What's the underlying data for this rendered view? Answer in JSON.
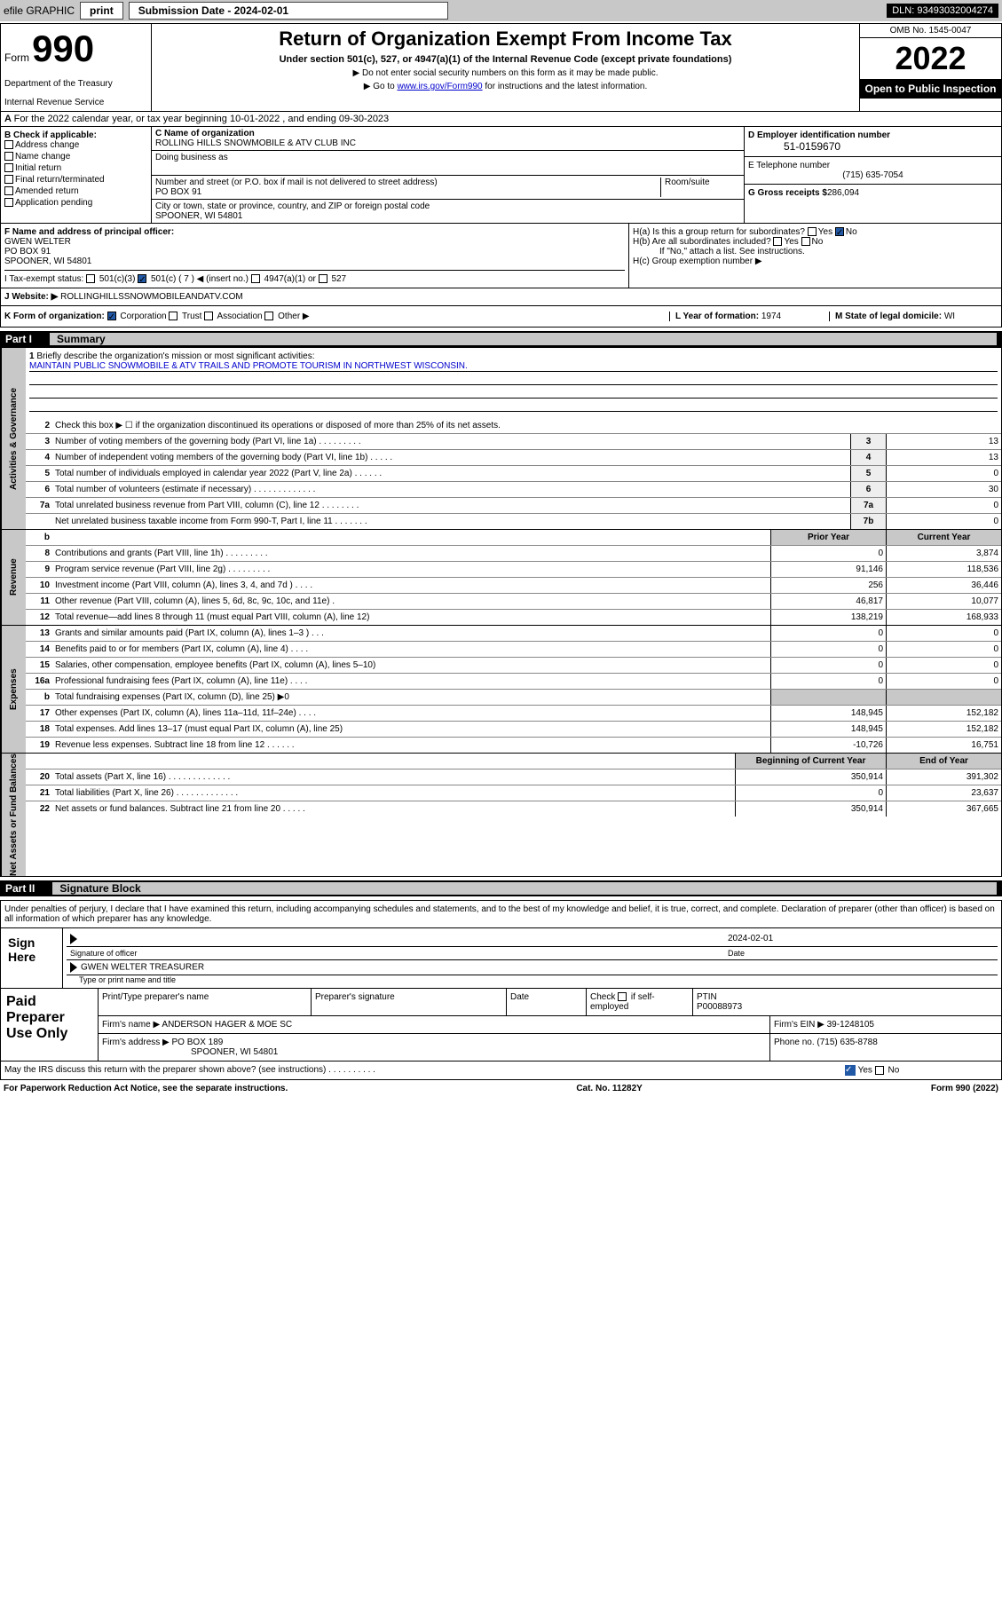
{
  "topbar": {
    "efile": "efile GRAPHIC",
    "print": "print",
    "subdate_label": "Submission Date - 2024-02-01",
    "dln": "DLN: 93493032004274"
  },
  "header": {
    "form_word": "Form",
    "form_num": "990",
    "title": "Return of Organization Exempt From Income Tax",
    "subtitle": "Under section 501(c), 527, or 4947(a)(1) of the Internal Revenue Code (except private foundations)",
    "note1": "▶ Do not enter social security numbers on this form as it may be made public.",
    "note2_pre": "▶ Go to ",
    "note2_link": "www.irs.gov/Form990",
    "note2_post": " for instructions and the latest information.",
    "dept": "Department of the Treasury",
    "irs": "Internal Revenue Service",
    "omb": "OMB No. 1545-0047",
    "year": "2022",
    "inspect": "Open to Public Inspection"
  },
  "row_a": "For the 2022 calendar year, or tax year beginning 10-01-2022    , and ending 09-30-2023",
  "box_b": {
    "title": "B Check if applicable:",
    "opts": [
      "Address change",
      "Name change",
      "Initial return",
      "Final return/terminated",
      "Amended return",
      "Application pending"
    ]
  },
  "box_c": {
    "name_lbl": "C Name of organization",
    "name": "ROLLING HILLS SNOWMOBILE & ATV CLUB INC",
    "dba_lbl": "Doing business as",
    "street_lbl": "Number and street (or P.O. box if mail is not delivered to street address)",
    "room_lbl": "Room/suite",
    "street": "PO BOX 91",
    "city_lbl": "City or town, state or province, country, and ZIP or foreign postal code",
    "city": "SPOONER, WI  54801"
  },
  "box_d": {
    "ein_lbl": "D Employer identification number",
    "ein": "51-0159670",
    "tel_lbl": "E Telephone number",
    "tel": "(715) 635-7054",
    "gross_lbl": "G Gross receipts $",
    "gross": "286,094"
  },
  "box_f": {
    "lbl": "F  Name and address of principal officer:",
    "name": "GWEN WELTER",
    "addr1": "PO BOX 91",
    "addr2": "SPOONER, WI  54801"
  },
  "box_h": {
    "ha": "H(a)  Is this a group return for subordinates?",
    "hb": "H(b)  Are all subordinates included?",
    "hb_note": "If \"No,\" attach a list. See instructions.",
    "hc": "H(c)  Group exemption number ▶",
    "yes": "Yes",
    "no": "No"
  },
  "row_i": {
    "lbl": "I    Tax-exempt status:",
    "c3": "501(c)(3)",
    "c": "501(c) ( 7 ) ◀ (insert no.)",
    "a1": "4947(a)(1) or",
    "s527": "527"
  },
  "row_j": {
    "lbl": "J   Website: ▶",
    "val": " ROLLINGHILLSSNOWMOBILEANDATV.COM"
  },
  "row_k": {
    "lbl": "K Form of organization:",
    "corp": "Corporation",
    "trust": "Trust",
    "assoc": "Association",
    "other": "Other ▶",
    "l_lbl": "L Year of formation: ",
    "l_val": "1974",
    "m_lbl": "M State of legal domicile: ",
    "m_val": "WI"
  },
  "part1": {
    "pt": "Part I",
    "pn": "Summary"
  },
  "brief": {
    "n": "1",
    "lbl": "Briefly describe the organization's mission or most significant activities:",
    "text": "MAINTAIN PUBLIC SNOWMOBILE & ATV TRAILS AND PROMOTE TOURISM IN NORTHWEST WISCONSIN."
  },
  "line2": {
    "n": "2",
    "t": "Check this box ▶ ☐  if the organization discontinued its operations or disposed of more than 25% of its net assets."
  },
  "lines_ag": [
    {
      "n": "3",
      "t": "Number of voting members of the governing body (Part VI, line 1a)   .    .    .    .    .    .    .    .    .",
      "c": "3",
      "v": "13"
    },
    {
      "n": "4",
      "t": "Number of independent voting members of the governing body (Part VI, line 1b)    .    .    .    .    .",
      "c": "4",
      "v": "13"
    },
    {
      "n": "5",
      "t": "Total number of individuals employed in calendar year 2022 (Part V, line 2a)    .    .    .    .    .    .",
      "c": "5",
      "v": "0"
    },
    {
      "n": "6",
      "t": "Total number of volunteers (estimate if necessary)    .    .    .    .    .    .    .    .    .    .    .    .    .",
      "c": "6",
      "v": "30"
    },
    {
      "n": "7a",
      "t": "Total unrelated business revenue from Part VIII, column (C), line 12    .    .    .    .    .    .    .    .",
      "c": "7a",
      "v": "0"
    },
    {
      "n": "",
      "t": "Net unrelated business taxable income from Form 990-T, Part I, line 11    .    .    .    .    .    .    .",
      "c": "7b",
      "v": "0"
    }
  ],
  "col_hdrs": {
    "b": "b",
    "py": "Prior Year",
    "cy": "Current Year"
  },
  "lines_rev": [
    {
      "n": "8",
      "t": "Contributions and grants (Part VIII, line 1h)    .    .    .    .    .    .    .    .    .",
      "py": "0",
      "cy": "3,874"
    },
    {
      "n": "9",
      "t": "Program service revenue (Part VIII, line 2g)    .    .    .    .    .    .    .    .    .",
      "py": "91,146",
      "cy": "118,536"
    },
    {
      "n": "10",
      "t": "Investment income (Part VIII, column (A), lines 3, 4, and 7d )    .    .    .    .",
      "py": "256",
      "cy": "36,446"
    },
    {
      "n": "11",
      "t": "Other revenue (Part VIII, column (A), lines 5, 6d, 8c, 9c, 10c, and 11e)    .",
      "py": "46,817",
      "cy": "10,077"
    },
    {
      "n": "12",
      "t": "Total revenue—add lines 8 through 11 (must equal Part VIII, column (A), line 12)",
      "py": "138,219",
      "cy": "168,933"
    }
  ],
  "lines_exp": [
    {
      "n": "13",
      "t": "Grants and similar amounts paid (Part IX, column (A), lines 1–3 )    .    .    .",
      "py": "0",
      "cy": "0"
    },
    {
      "n": "14",
      "t": "Benefits paid to or for members (Part IX, column (A), line 4)    .    .    .    .",
      "py": "0",
      "cy": "0"
    },
    {
      "n": "15",
      "t": "Salaries, other compensation, employee benefits (Part IX, column (A), lines 5–10)",
      "py": "0",
      "cy": "0"
    },
    {
      "n": "16a",
      "t": "Professional fundraising fees (Part IX, column (A), line 11e)    .    .    .    .",
      "py": "0",
      "cy": "0"
    },
    {
      "n": "b",
      "t": "Total fundraising expenses (Part IX, column (D), line 25) ▶0",
      "py": "",
      "cy": "",
      "grey": true
    },
    {
      "n": "17",
      "t": "Other expenses (Part IX, column (A), lines 11a–11d, 11f–24e)    .    .    .    .",
      "py": "148,945",
      "cy": "152,182"
    },
    {
      "n": "18",
      "t": "Total expenses. Add lines 13–17 (must equal Part IX, column (A), line 25)",
      "py": "148,945",
      "cy": "152,182"
    },
    {
      "n": "19",
      "t": "Revenue less expenses. Subtract line 18 from line 12    .    .    .    .    .    .",
      "py": "-10,726",
      "cy": "16,751"
    }
  ],
  "col_hdrs2": {
    "py": "Beginning of Current Year",
    "cy": "End of Year"
  },
  "lines_na": [
    {
      "n": "20",
      "t": "Total assets (Part X, line 16)    .    .    .    .    .    .    .    .    .    .    .    .    .",
      "py": "350,914",
      "cy": "391,302"
    },
    {
      "n": "21",
      "t": "Total liabilities (Part X, line 26)    .    .    .    .    .    .    .    .    .    .    .    .    .",
      "py": "0",
      "cy": "23,637"
    },
    {
      "n": "22",
      "t": "Net assets or fund balances. Subtract line 21 from line 20    .    .    .    .    .",
      "py": "350,914",
      "cy": "367,665"
    }
  ],
  "vtabs": {
    "ag": "Activities & Governance",
    "rev": "Revenue",
    "exp": "Expenses",
    "na": "Net Assets or Fund Balances"
  },
  "part2": {
    "pt": "Part II",
    "pn": "Signature Block"
  },
  "sig": {
    "decl": "Under penalties of perjury, I declare that I have examined this return, including accompanying schedules and statements, and to the best of my knowledge and belief, it is true, correct, and complete. Declaration of preparer (other than officer) is based on all information of which preparer has any knowledge.",
    "here": "Sign Here",
    "date": "2024-02-01",
    "sig_lbl": "Signature of officer",
    "date_lbl": "Date",
    "name": "GWEN WELTER TREASURER",
    "name_lbl": "Type or print name and title"
  },
  "paid": {
    "lbl": "Paid Preparer Use Only",
    "h1": "Print/Type preparer's name",
    "h2": "Preparer's signature",
    "h3": "Date",
    "h4a": "Check",
    "h4b": "if self-employed",
    "h5": "PTIN",
    "ptin": "P00088973",
    "firm_lbl": "Firm's name    ▶",
    "firm": "ANDERSON HAGER & MOE SC",
    "ein_lbl": "Firm's EIN ▶",
    "ein": "39-1248105",
    "addr_lbl": "Firm's address ▶",
    "addr1": "PO BOX 189",
    "addr2": "SPOONER, WI  54801",
    "phone_lbl": "Phone no.",
    "phone": "(715) 635-8788"
  },
  "may": {
    "q": "May the IRS discuss this return with the preparer shown above? (see instructions)    .    .    .    .    .    .    .    .    .    .",
    "yes": "Yes",
    "no": "No"
  },
  "footer": {
    "l": "For Paperwork Reduction Act Notice, see the separate instructions.",
    "c": "Cat. No. 11282Y",
    "r": "Form 990 (2022)"
  }
}
